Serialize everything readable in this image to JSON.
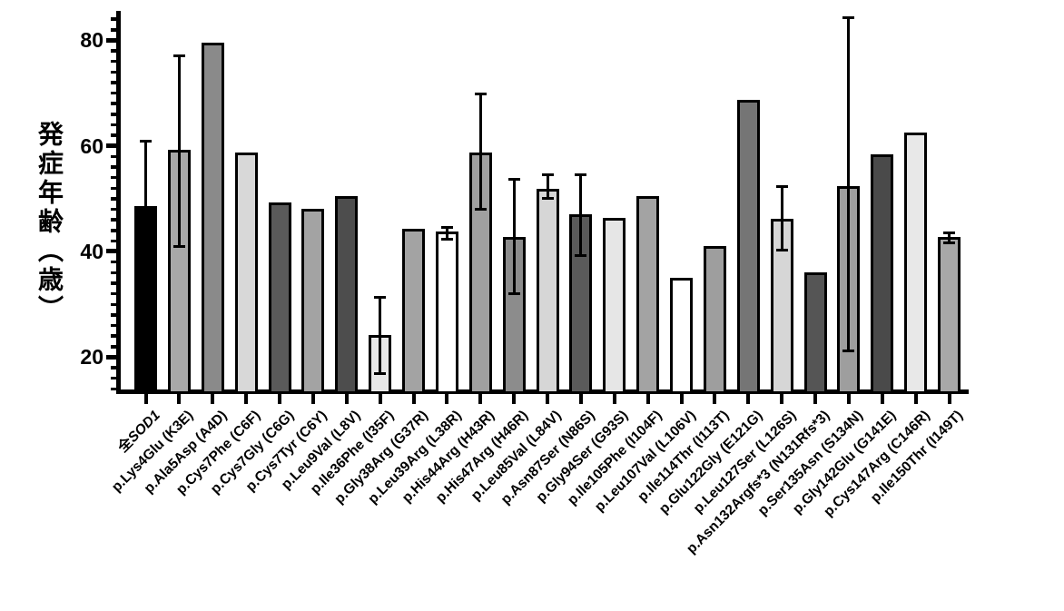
{
  "figure": {
    "description_visible_text_only": true,
    "background_color": "#ffffff",
    "axis_color": "#000000"
  },
  "chart_data": {
    "type": "bar",
    "title": "",
    "xlabel": "",
    "ylabel": "発症年齢（歳）",
    "ylim": [
      13.5,
      85.5
    ],
    "yticks_major": [
      20,
      40,
      60,
      80
    ],
    "ytick_minor_step": 2,
    "grid": false,
    "legend": "none",
    "error_bars": "black whiskers with caps, drawn over bars",
    "italic_substring": "SOD1",
    "categories": [
      "全SOD1",
      "p.Lys4Glu (K3E)",
      "p.Ala5Asp (A4D)",
      "p.Cys7Phe (C6F)",
      "p.Cys7Gly (C6G)",
      "p.Cys7Tyr (C6Y)",
      "p.Leu9Val (L8V)",
      "p.Ile36Phe (I35F)",
      "p.Gly38Arg (G37R)",
      "p.Leu39Arg (L38R)",
      "p.His44Arg (H43R)",
      "p.His47Arg (H46R)",
      "p.Leu85Val (L84V)",
      "p.Asn87Ser (N86S)",
      "p.Gly94Ser (G93S)",
      "p.Ile105Phe (I104F)",
      "p.Leu107Val (L106V)",
      "p.Ile114Thr (I113T)",
      "p.Glu122Gly (E121G)",
      "p.Leu127Ser (L126S)",
      "p.Asn132Argfs*3 (N131Rfs*3)",
      "p.Ser135Asn (S134N)",
      "p.Gly142Glu (G141E)",
      "p.Cys147Arg (C146R)",
      "p.Ile150Thr (I149T)"
    ],
    "series": [
      {
        "name": "発症年齢（歳）",
        "values": [
          48.2,
          58.8,
          79.1,
          58.3,
          48.9,
          47.7,
          50.1,
          23.8,
          43.9,
          43.4,
          58.3,
          42.4,
          51.5,
          46.7,
          46.0,
          50.1,
          34.7,
          40.7,
          68.4,
          45.8,
          35.7,
          52.0,
          58.0,
          62.1,
          42.4
        ],
        "error_low": [
          null,
          40.8,
          null,
          null,
          null,
          null,
          null,
          16.7,
          null,
          42.2,
          47.8,
          31.9,
          49.9,
          39.1,
          null,
          null,
          null,
          null,
          null,
          40.1,
          null,
          21.0,
          null,
          null,
          41.5
        ],
        "error_high": [
          61.0,
          77.1,
          null,
          null,
          null,
          null,
          null,
          31.3,
          null,
          44.6,
          69.9,
          53.7,
          54.6,
          54.6,
          null,
          null,
          null,
          null,
          null,
          52.3,
          null,
          84.3,
          null,
          null,
          43.5
        ],
        "bar_colors": [
          "#000000",
          "#a8a8a8",
          "#8a8a8a",
          "#d8d8d8",
          "#5a5a5a",
          "#a3a3a3",
          "#4d4d4d",
          "#e8e8e8",
          "#a3a3a3",
          "#ffffff",
          "#a0a0a0",
          "#8c8c8c",
          "#d6d6d6",
          "#5a5a5a",
          "#e6e6e6",
          "#a3a3a3",
          "#ffffff",
          "#9e9e9e",
          "#757575",
          "#d6d6d6",
          "#555555",
          "#9e9e9e",
          "#4a4a4a",
          "#e8e8e8",
          "#a8a8a8"
        ]
      }
    ]
  }
}
